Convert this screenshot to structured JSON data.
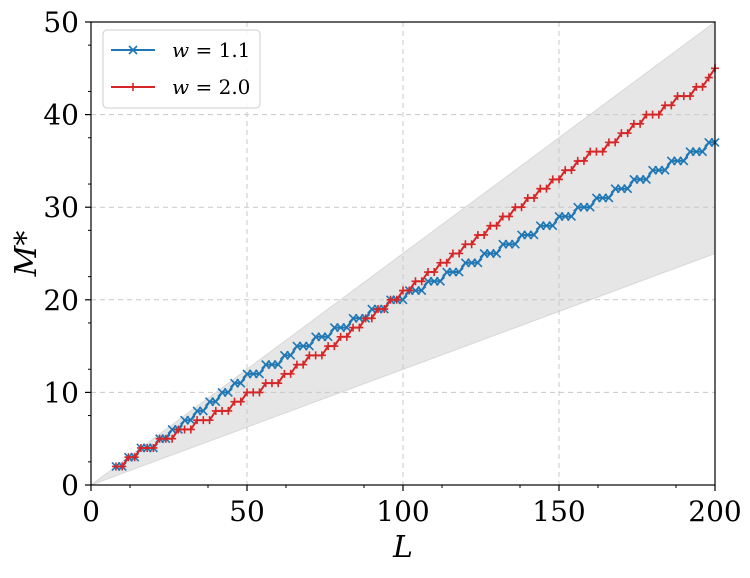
{
  "chart_data": {
    "type": "line",
    "xlabel": "L",
    "ylabel": "M*",
    "xlim": [
      0,
      200
    ],
    "ylim": [
      0,
      50
    ],
    "x_ticks": [
      "0",
      "50",
      "100",
      "150",
      "200"
    ],
    "y_ticks": [
      "0",
      "10",
      "20",
      "30",
      "40",
      "50"
    ],
    "x_tick_values": [
      0,
      50,
      100,
      150,
      200
    ],
    "y_tick_values": [
      0,
      10,
      20,
      30,
      40,
      50
    ],
    "grid": true,
    "legend_position": "top-left",
    "shaded_region": {
      "description": "bounds",
      "upper": [
        [
          0,
          0
        ],
        [
          200,
          50
        ]
      ],
      "lower": [
        [
          0,
          0
        ],
        [
          200,
          25
        ]
      ],
      "color": "#e6e6e6"
    },
    "series": [
      {
        "name": "w = 1.1",
        "legend_var": "w",
        "legend_value": "= 1.1",
        "color": "#1f77b4",
        "marker": "x",
        "points": [
          [
            8,
            2
          ],
          [
            10,
            2
          ],
          [
            12,
            3
          ],
          [
            14,
            3
          ],
          [
            16,
            4
          ],
          [
            18,
            4
          ],
          [
            20,
            4
          ],
          [
            22,
            5
          ],
          [
            24,
            5
          ],
          [
            26,
            6
          ],
          [
            28,
            6
          ],
          [
            30,
            7
          ],
          [
            32,
            7
          ],
          [
            34,
            8
          ],
          [
            36,
            8
          ],
          [
            38,
            9
          ],
          [
            40,
            9
          ],
          [
            42,
            10
          ],
          [
            44,
            10
          ],
          [
            46,
            11
          ],
          [
            48,
            11
          ],
          [
            50,
            12
          ],
          [
            52,
            12
          ],
          [
            54,
            12
          ],
          [
            56,
            13
          ],
          [
            58,
            13
          ],
          [
            60,
            13
          ],
          [
            62,
            14
          ],
          [
            64,
            14
          ],
          [
            66,
            15
          ],
          [
            68,
            15
          ],
          [
            70,
            15
          ],
          [
            72,
            16
          ],
          [
            74,
            16
          ],
          [
            76,
            16
          ],
          [
            78,
            17
          ],
          [
            80,
            17
          ],
          [
            82,
            17
          ],
          [
            84,
            18
          ],
          [
            86,
            18
          ],
          [
            88,
            18
          ],
          [
            90,
            19
          ],
          [
            92,
            19
          ],
          [
            94,
            19
          ],
          [
            96,
            20
          ],
          [
            98,
            20
          ],
          [
            100,
            20
          ],
          [
            102,
            21
          ],
          [
            104,
            21
          ],
          [
            106,
            21
          ],
          [
            108,
            22
          ],
          [
            110,
            22
          ],
          [
            112,
            22
          ],
          [
            114,
            23
          ],
          [
            116,
            23
          ],
          [
            118,
            23
          ],
          [
            120,
            24
          ],
          [
            122,
            24
          ],
          [
            124,
            24
          ],
          [
            126,
            25
          ],
          [
            128,
            25
          ],
          [
            130,
            25
          ],
          [
            132,
            26
          ],
          [
            134,
            26
          ],
          [
            136,
            26
          ],
          [
            138,
            27
          ],
          [
            140,
            27
          ],
          [
            142,
            27
          ],
          [
            144,
            28
          ],
          [
            146,
            28
          ],
          [
            148,
            28
          ],
          [
            150,
            29
          ],
          [
            152,
            29
          ],
          [
            154,
            29
          ],
          [
            156,
            30
          ],
          [
            158,
            30
          ],
          [
            160,
            30
          ],
          [
            162,
            31
          ],
          [
            164,
            31
          ],
          [
            166,
            31
          ],
          [
            168,
            32
          ],
          [
            170,
            32
          ],
          [
            172,
            32
          ],
          [
            174,
            33
          ],
          [
            176,
            33
          ],
          [
            178,
            33
          ],
          [
            180,
            34
          ],
          [
            182,
            34
          ],
          [
            184,
            34
          ],
          [
            186,
            35
          ],
          [
            188,
            35
          ],
          [
            190,
            35
          ],
          [
            192,
            36
          ],
          [
            194,
            36
          ],
          [
            196,
            36
          ],
          [
            198,
            37
          ],
          [
            200,
            37
          ]
        ]
      },
      {
        "name": "w = 2.0",
        "legend_var": "w",
        "legend_value": "= 2.0",
        "color": "#d62728",
        "marker": "+",
        "points": [
          [
            8,
            2
          ],
          [
            10,
            2
          ],
          [
            12,
            3
          ],
          [
            14,
            3
          ],
          [
            16,
            4
          ],
          [
            18,
            4
          ],
          [
            20,
            4
          ],
          [
            22,
            5
          ],
          [
            24,
            5
          ],
          [
            26,
            5
          ],
          [
            28,
            6
          ],
          [
            30,
            6
          ],
          [
            32,
            6
          ],
          [
            34,
            7
          ],
          [
            36,
            7
          ],
          [
            38,
            7
          ],
          [
            40,
            8
          ],
          [
            42,
            8
          ],
          [
            44,
            8
          ],
          [
            46,
            9
          ],
          [
            48,
            9
          ],
          [
            50,
            10
          ],
          [
            52,
            10
          ],
          [
            54,
            10
          ],
          [
            56,
            11
          ],
          [
            58,
            11
          ],
          [
            60,
            11
          ],
          [
            62,
            12
          ],
          [
            64,
            12
          ],
          [
            66,
            13
          ],
          [
            68,
            13
          ],
          [
            70,
            14
          ],
          [
            72,
            14
          ],
          [
            74,
            14
          ],
          [
            76,
            15
          ],
          [
            78,
            15
          ],
          [
            80,
            16
          ],
          [
            82,
            16
          ],
          [
            84,
            17
          ],
          [
            86,
            17
          ],
          [
            88,
            18
          ],
          [
            90,
            18
          ],
          [
            92,
            19
          ],
          [
            94,
            19
          ],
          [
            96,
            20
          ],
          [
            98,
            20
          ],
          [
            100,
            21
          ],
          [
            102,
            21
          ],
          [
            104,
            22
          ],
          [
            106,
            22
          ],
          [
            108,
            23
          ],
          [
            110,
            23
          ],
          [
            112,
            24
          ],
          [
            114,
            24
          ],
          [
            116,
            25
          ],
          [
            118,
            25
          ],
          [
            120,
            26
          ],
          [
            122,
            26
          ],
          [
            124,
            27
          ],
          [
            126,
            27
          ],
          [
            128,
            28
          ],
          [
            130,
            28
          ],
          [
            132,
            29
          ],
          [
            134,
            29
          ],
          [
            136,
            30
          ],
          [
            138,
            30
          ],
          [
            140,
            31
          ],
          [
            142,
            31
          ],
          [
            144,
            32
          ],
          [
            146,
            32
          ],
          [
            148,
            33
          ],
          [
            150,
            33
          ],
          [
            152,
            34
          ],
          [
            154,
            34
          ],
          [
            156,
            35
          ],
          [
            158,
            35
          ],
          [
            160,
            36
          ],
          [
            162,
            36
          ],
          [
            164,
            36
          ],
          [
            166,
            37
          ],
          [
            168,
            37
          ],
          [
            170,
            38
          ],
          [
            172,
            38
          ],
          [
            174,
            39
          ],
          [
            176,
            39
          ],
          [
            178,
            40
          ],
          [
            180,
            40
          ],
          [
            182,
            40
          ],
          [
            184,
            41
          ],
          [
            186,
            41
          ],
          [
            188,
            42
          ],
          [
            190,
            42
          ],
          [
            192,
            42
          ],
          [
            194,
            43
          ],
          [
            196,
            43
          ],
          [
            198,
            44
          ],
          [
            200,
            45
          ]
        ]
      }
    ]
  }
}
